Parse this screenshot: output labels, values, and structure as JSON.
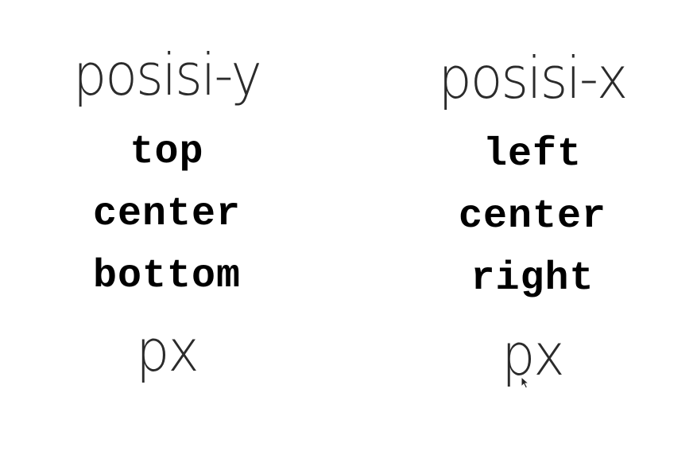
{
  "columns": [
    {
      "heading": "posisi-y",
      "values": [
        "top",
        "center",
        "bottom"
      ],
      "unit": "px"
    },
    {
      "heading": "posisi-x",
      "values": [
        "left",
        "center",
        "right"
      ],
      "unit": "px"
    }
  ],
  "cursor": {
    "icon": "mouse-pointer-icon",
    "color": "#222222"
  }
}
